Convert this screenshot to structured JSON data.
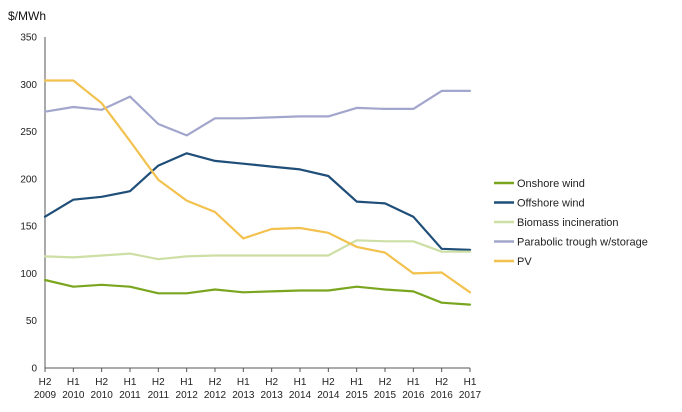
{
  "chart_data": {
    "type": "line",
    "title": "",
    "unit_label": "$/MWh",
    "xlabel": "",
    "ylabel": "",
    "ylim": [
      0,
      350
    ],
    "yticks": [
      0,
      50,
      100,
      150,
      200,
      250,
      300,
      350
    ],
    "grid": false,
    "legend_position": "right",
    "categories": [
      {
        "half": "H2",
        "year": "2009"
      },
      {
        "half": "H1",
        "year": "2010"
      },
      {
        "half": "H2",
        "year": "2010"
      },
      {
        "half": "H1",
        "year": "2011"
      },
      {
        "half": "H2",
        "year": "2011"
      },
      {
        "half": "H1",
        "year": "2012"
      },
      {
        "half": "H2",
        "year": "2012"
      },
      {
        "half": "H1",
        "year": "2013"
      },
      {
        "half": "H2",
        "year": "2013"
      },
      {
        "half": "H1",
        "year": "2014"
      },
      {
        "half": "H2",
        "year": "2014"
      },
      {
        "half": "H1",
        "year": "2015"
      },
      {
        "half": "H2",
        "year": "2015"
      },
      {
        "half": "H1",
        "year": "2016"
      },
      {
        "half": "H2",
        "year": "2016"
      },
      {
        "half": "H1",
        "year": "2017"
      }
    ],
    "series": [
      {
        "name": "Onshore wind",
        "color": "#7aa61f",
        "values": [
          93,
          86,
          88,
          86,
          79,
          79,
          83,
          80,
          81,
          82,
          82,
          86,
          83,
          81,
          69,
          67
        ]
      },
      {
        "name": "Offshore wind",
        "color": "#1f4e79",
        "values": [
          160,
          178,
          181,
          187,
          214,
          227,
          219,
          216,
          213,
          210,
          203,
          176,
          174,
          160,
          126,
          125
        ]
      },
      {
        "name": "Biomass incineration",
        "color": "#cddfa5",
        "values": [
          118,
          117,
          119,
          121,
          115,
          118,
          119,
          119,
          119,
          119,
          119,
          135,
          134,
          134,
          123,
          123
        ]
      },
      {
        "name": "Parabolic trough w/storage",
        "color": "#a3a6cc",
        "values": [
          271,
          276,
          273,
          287,
          258,
          246,
          264,
          264,
          265,
          266,
          266,
          275,
          274,
          274,
          293,
          293
        ]
      },
      {
        "name": "PV",
        "color": "#f2c14e",
        "values": [
          304,
          304,
          280,
          240,
          199,
          177,
          165,
          137,
          147,
          148,
          143,
          128,
          122,
          100,
          101,
          80
        ]
      }
    ]
  }
}
